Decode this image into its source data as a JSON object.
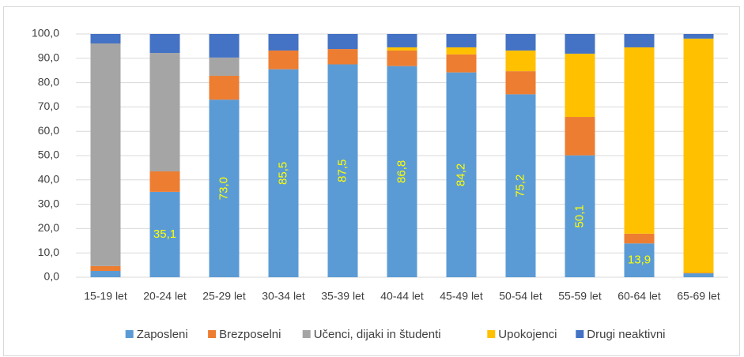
{
  "chart_data": {
    "type": "stacked_bar",
    "categories": [
      "15-19 let",
      "20-24 let",
      "25-29 let",
      "30-34 let",
      "35-39 let",
      "40-44 let",
      "45-49 let",
      "50-54 let",
      "55-59 let",
      "60-64 let",
      "65-69 let"
    ],
    "series": [
      {
        "name": "Zaposleni",
        "color": "#5b9bd5",
        "values": [
          2.6,
          35.1,
          73.0,
          85.5,
          87.5,
          86.8,
          84.2,
          75.2,
          50.1,
          13.9,
          1.6
        ],
        "value_labels": [
          null,
          "35,1",
          "73,0",
          "85,5",
          "87,5",
          "86,8",
          "84,2",
          "75,2",
          "50,1",
          "13,9",
          null
        ]
      },
      {
        "name": "Brezposelni",
        "color": "#ed7d31",
        "values": [
          2.0,
          8.4,
          9.8,
          7.7,
          6.3,
          6.4,
          7.4,
          9.5,
          15.8,
          4.0,
          0.2
        ]
      },
      {
        "name": "Učenci, dijaki in študenti",
        "color": "#a5a5a5",
        "values": [
          91.5,
          48.7,
          7.5,
          0,
          0,
          0,
          0,
          0,
          0,
          0,
          0
        ]
      },
      {
        "name": "Upokojenci",
        "color": "#ffc000",
        "values": [
          0,
          0,
          0,
          0,
          0,
          1.3,
          2.9,
          8.5,
          26.0,
          76.6,
          96.3
        ]
      },
      {
        "name": "Drugi neaktivni",
        "color": "#4472c4",
        "values": [
          3.9,
          7.8,
          9.7,
          6.8,
          6.2,
          5.5,
          5.5,
          6.8,
          8.1,
          5.5,
          1.9
        ]
      }
    ],
    "ylim": [
      0,
      100
    ],
    "yticks": [
      {
        "value": 0,
        "label": "0,0"
      },
      {
        "value": 10,
        "label": "10,0"
      },
      {
        "value": 20,
        "label": "20,0"
      },
      {
        "value": 30,
        "label": "30,0"
      },
      {
        "value": 40,
        "label": "40,0"
      },
      {
        "value": 50,
        "label": "50,0"
      },
      {
        "value": 60,
        "label": "60,0"
      },
      {
        "value": 70,
        "label": "70,0"
      },
      {
        "value": 80,
        "label": "80,0"
      },
      {
        "value": 90,
        "label": "90,0"
      },
      {
        "value": 100,
        "label": "100,0"
      }
    ],
    "grid": true,
    "legend": "bottom"
  }
}
